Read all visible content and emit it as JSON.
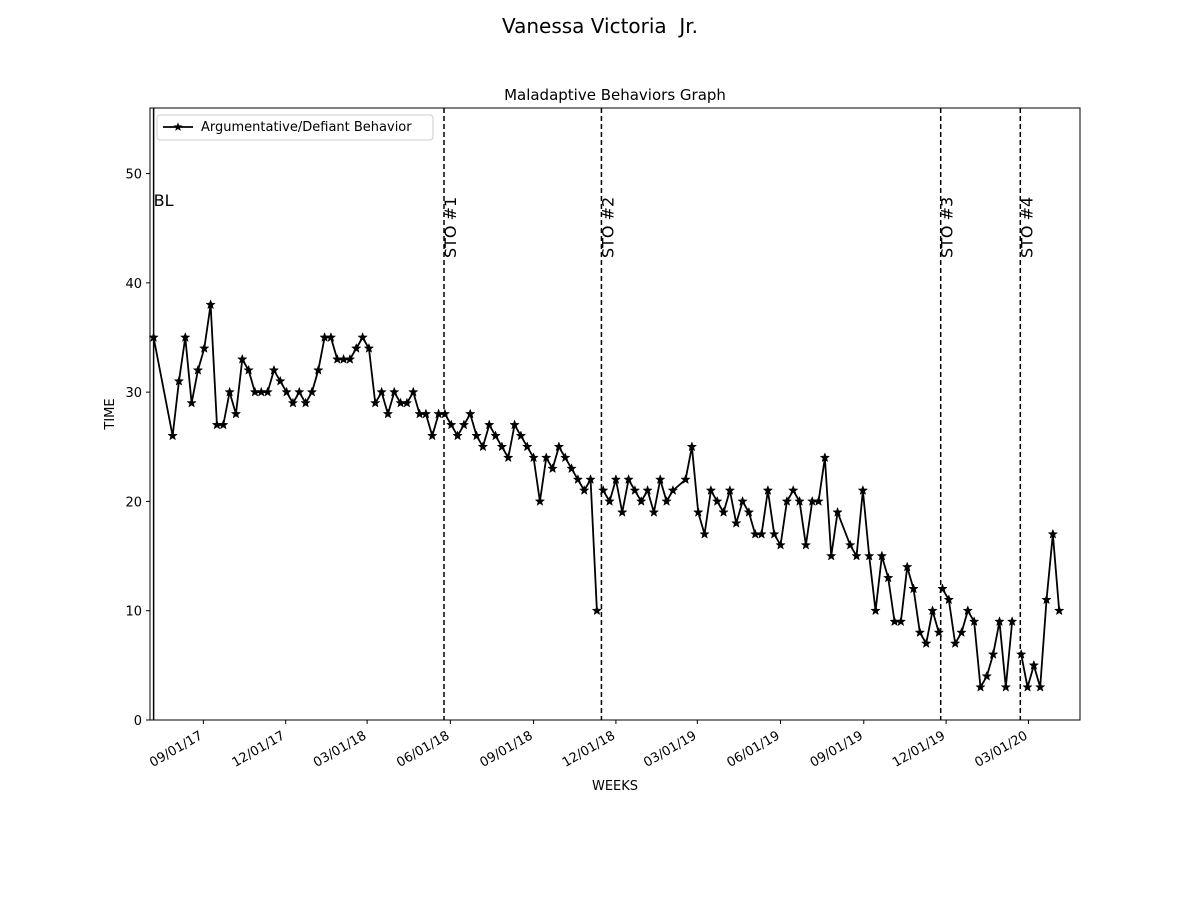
{
  "suptitle": "Vanessa Victoria  Jr.",
  "chart_data": {
    "type": "line",
    "title": "Maladaptive Behaviors Graph",
    "xlabel": "WEEKS",
    "ylabel": "TIME",
    "ylim": [
      0,
      56
    ],
    "xlim": [
      "2017-07-04",
      "2020-04-27"
    ],
    "grid": false,
    "legend_position": "top-left",
    "yticks": [
      0,
      10,
      20,
      30,
      40,
      50
    ],
    "xticks": [
      {
        "date": "2017-09-01",
        "label": "09/01/17"
      },
      {
        "date": "2017-12-01",
        "label": "12/01/17"
      },
      {
        "date": "2018-03-01",
        "label": "03/01/18"
      },
      {
        "date": "2018-06-01",
        "label": "06/01/18"
      },
      {
        "date": "2018-09-01",
        "label": "09/01/18"
      },
      {
        "date": "2018-12-01",
        "label": "12/01/18"
      },
      {
        "date": "2019-03-01",
        "label": "03/01/19"
      },
      {
        "date": "2019-06-01",
        "label": "06/01/19"
      },
      {
        "date": "2019-09-01",
        "label": "09/01/19"
      },
      {
        "date": "2019-12-01",
        "label": "12/01/19"
      },
      {
        "date": "2020-03-01",
        "label": "03/01/20"
      }
    ],
    "phase_lines": [
      {
        "label": "BL",
        "date": "2017-07-08",
        "style": "solid"
      },
      {
        "label": "STO #1",
        "date": "2018-05-25",
        "style": "dashed"
      },
      {
        "label": "STO #2",
        "date": "2018-11-15",
        "style": "dashed"
      },
      {
        "label": "STO #3",
        "date": "2019-11-25",
        "style": "dashed"
      },
      {
        "label": "STO #4",
        "date": "2020-02-21",
        "style": "dashed"
      }
    ],
    "series": [
      {
        "name": "Argumentative/Defiant Behavior",
        "color": "#000000",
        "marker": "star",
        "segments": [
          {
            "x": [
              "2017-07-08",
              "2017-07-22",
              "2017-07-29",
              "2017-08-05",
              "2017-08-12",
              "2017-08-19",
              "2017-08-26",
              "2017-09-02",
              "2017-09-09",
              "2017-09-16",
              "2017-09-23",
              "2017-09-30",
              "2017-10-07",
              "2017-10-14",
              "2017-10-21",
              "2017-10-28",
              "2017-11-04",
              "2017-11-11",
              "2017-11-18",
              "2017-11-25",
              "2017-12-02",
              "2017-12-09",
              "2017-12-16",
              "2017-12-23",
              "2017-12-30",
              "2018-01-06",
              "2018-01-13",
              "2018-01-20",
              "2018-01-27",
              "2018-02-03",
              "2018-02-10",
              "2018-02-17",
              "2018-02-24",
              "2018-03-03",
              "2018-03-10",
              "2018-03-17",
              "2018-03-24",
              "2018-03-31",
              "2018-04-07",
              "2018-04-14",
              "2018-04-21",
              "2018-04-28",
              "2018-05-05",
              "2018-05-12",
              "2018-05-19",
              "2018-05-26",
              "2018-06-02",
              "2018-06-09",
              "2018-06-16",
              "2018-06-23",
              "2018-06-30",
              "2018-07-07",
              "2018-07-14",
              "2018-07-21",
              "2018-07-28",
              "2018-08-04",
              "2018-08-11",
              "2018-08-18",
              "2018-08-25",
              "2018-09-01",
              "2018-09-08",
              "2018-09-15",
              "2018-09-22",
              "2018-09-29",
              "2018-10-06",
              "2018-10-13",
              "2018-10-20",
              "2018-10-27",
              "2018-11-03",
              "2018-11-10"
            ],
            "y": [
              35,
              null,
              26,
              31,
              35,
              29,
              32,
              34,
              38,
              27,
              27,
              30,
              28,
              33,
              32,
              30,
              30,
              30,
              32,
              31,
              30,
              29,
              30,
              29,
              30,
              32,
              35,
              35,
              33,
              33,
              33,
              34,
              35,
              34,
              29,
              30,
              28,
              30,
              29,
              29,
              30,
              28,
              28,
              26,
              28,
              28,
              27,
              26,
              27,
              28,
              26,
              25,
              27,
              26,
              25,
              24,
              27,
              26,
              25,
              24,
              20,
              24,
              23,
              25,
              24,
              23,
              22,
              21,
              22,
              10
            ]
          },
          {
            "x": [
              "2018-11-17",
              "2018-11-24",
              "2018-12-01",
              "2018-12-08",
              "2018-12-15",
              "2018-12-22",
              "2018-12-29",
              "2019-01-05",
              "2019-01-12",
              "2019-01-19",
              "2019-01-26",
              "2019-02-02",
              "2019-02-09",
              "2019-02-16",
              "2019-02-23",
              "2019-03-02",
              "2019-03-09",
              "2019-03-16",
              "2019-03-23",
              "2019-03-30",
              "2019-04-06",
              "2019-04-13",
              "2019-04-20",
              "2019-04-27",
              "2019-05-04",
              "2019-05-11",
              "2019-05-18",
              "2019-05-25",
              "2019-06-01",
              "2019-06-08",
              "2019-06-15",
              "2019-06-22",
              "2019-06-29",
              "2019-07-06",
              "2019-07-13",
              "2019-07-20",
              "2019-07-27",
              "2019-08-03",
              "2019-08-10",
              "2019-08-17",
              "2019-08-24",
              "2019-08-31",
              "2019-09-07",
              "2019-09-14",
              "2019-09-21",
              "2019-09-28",
              "2019-10-05",
              "2019-10-12",
              "2019-10-19",
              "2019-10-26",
              "2019-11-02",
              "2019-11-09",
              "2019-11-16",
              "2019-11-23"
            ],
            "y": [
              21,
              20,
              22,
              19,
              22,
              21,
              20,
              21,
              19,
              22,
              20,
              21,
              null,
              22,
              25,
              19,
              17,
              21,
              20,
              19,
              21,
              18,
              20,
              19,
              17,
              17,
              21,
              17,
              16,
              20,
              21,
              20,
              16,
              20,
              20,
              24,
              15,
              19,
              null,
              16,
              15,
              21,
              15,
              10,
              15,
              13,
              9,
              9,
              14,
              12,
              8,
              7,
              10,
              8
            ]
          },
          {
            "x": [
              "2019-11-27",
              "2019-12-04",
              "2019-12-11",
              "2019-12-18",
              "2019-12-25",
              "2020-01-01",
              "2020-01-08",
              "2020-01-15",
              "2020-01-22",
              "2020-01-29",
              "2020-02-05",
              "2020-02-12"
            ],
            "y": [
              12,
              11,
              7,
              8,
              10,
              9,
              3,
              4,
              6,
              9,
              3,
              9
            ]
          },
          {
            "x": [
              "2020-02-22",
              "2020-02-29",
              "2020-03-07",
              "2020-03-14",
              "2020-03-21",
              "2020-03-28",
              "2020-04-04"
            ],
            "y": [
              6,
              3,
              5,
              3,
              11,
              17,
              10
            ]
          }
        ]
      }
    ]
  }
}
